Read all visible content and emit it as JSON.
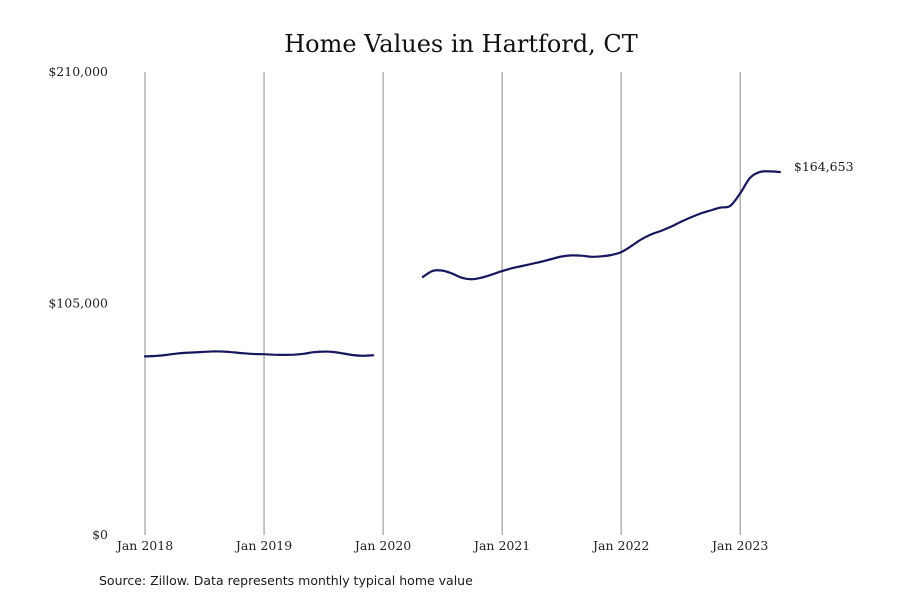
{
  "chart_data": {
    "type": "line",
    "title": "Home Values in Hartford, CT",
    "ylim": [
      0,
      210000
    ],
    "xlim": [
      "2018-01",
      "2023-06"
    ],
    "y_ticks": [
      {
        "value": 0,
        "label": "$0"
      },
      {
        "value": 105000,
        "label": "$105,000"
      },
      {
        "value": 210000,
        "label": "$210,000"
      }
    ],
    "x_ticks": [
      {
        "value": "2018-01",
        "label": "Jan 2018"
      },
      {
        "value": "2019-01",
        "label": "Jan 2019"
      },
      {
        "value": "2020-01",
        "label": "Jan 2020"
      },
      {
        "value": "2021-01",
        "label": "Jan 2021"
      },
      {
        "value": "2022-01",
        "label": "Jan 2022"
      },
      {
        "value": "2023-01",
        "label": "Jan 2023"
      }
    ],
    "grid": {
      "vertical": true,
      "horizontal": false
    },
    "line_color": "#17175e",
    "grid_color": "#8c8c8c",
    "end_label": "$164,653",
    "source": "Source: Zillow. Data represents monthly typical home value",
    "series": [
      {
        "segments": [
          [
            {
              "x": "2018-01",
              "y": 81000
            },
            {
              "x": "2018-02",
              "y": 81200
            },
            {
              "x": "2018-03",
              "y": 81600
            },
            {
              "x": "2018-04",
              "y": 82200
            },
            {
              "x": "2018-05",
              "y": 82600
            },
            {
              "x": "2018-06",
              "y": 82800
            },
            {
              "x": "2018-07",
              "y": 83100
            },
            {
              "x": "2018-08",
              "y": 83300
            },
            {
              "x": "2018-09",
              "y": 83200
            },
            {
              "x": "2018-10",
              "y": 82800
            },
            {
              "x": "2018-11",
              "y": 82400
            },
            {
              "x": "2018-12",
              "y": 82100
            },
            {
              "x": "2019-01",
              "y": 82000
            },
            {
              "x": "2019-02",
              "y": 81800
            },
            {
              "x": "2019-03",
              "y": 81700
            },
            {
              "x": "2019-04",
              "y": 81800
            },
            {
              "x": "2019-05",
              "y": 82200
            },
            {
              "x": "2019-06",
              "y": 82900
            },
            {
              "x": "2019-07",
              "y": 83200
            },
            {
              "x": "2019-08",
              "y": 83000
            },
            {
              "x": "2019-09",
              "y": 82300
            },
            {
              "x": "2019-10",
              "y": 81600
            },
            {
              "x": "2019-11",
              "y": 81300
            },
            {
              "x": "2019-12",
              "y": 81500
            }
          ],
          [
            {
              "x": "2020-05",
              "y": 117000
            },
            {
              "x": "2020-06",
              "y": 119800
            },
            {
              "x": "2020-07",
              "y": 119900
            },
            {
              "x": "2020-08",
              "y": 118500
            },
            {
              "x": "2020-09",
              "y": 116600
            },
            {
              "x": "2020-10",
              "y": 116000
            },
            {
              "x": "2020-11",
              "y": 116800
            },
            {
              "x": "2020-12",
              "y": 118200
            },
            {
              "x": "2021-01",
              "y": 119700
            },
            {
              "x": "2021-02",
              "y": 121000
            },
            {
              "x": "2021-03",
              "y": 122000
            },
            {
              "x": "2021-04",
              "y": 123000
            },
            {
              "x": "2021-05",
              "y": 124000
            },
            {
              "x": "2021-06",
              "y": 125200
            },
            {
              "x": "2021-07",
              "y": 126300
            },
            {
              "x": "2021-08",
              "y": 126800
            },
            {
              "x": "2021-09",
              "y": 126700
            },
            {
              "x": "2021-10",
              "y": 126200
            },
            {
              "x": "2021-11",
              "y": 126400
            },
            {
              "x": "2021-12",
              "y": 127000
            },
            {
              "x": "2022-01",
              "y": 128300
            },
            {
              "x": "2022-02",
              "y": 131000
            },
            {
              "x": "2022-03",
              "y": 134000
            },
            {
              "x": "2022-04",
              "y": 136300
            },
            {
              "x": "2022-05",
              "y": 137900
            },
            {
              "x": "2022-06",
              "y": 139800
            },
            {
              "x": "2022-07",
              "y": 142000
            },
            {
              "x": "2022-08",
              "y": 144000
            },
            {
              "x": "2022-09",
              "y": 145800
            },
            {
              "x": "2022-10",
              "y": 147200
            },
            {
              "x": "2022-11",
              "y": 148500
            },
            {
              "x": "2022-12",
              "y": 149300
            },
            {
              "x": "2023-01",
              "y": 155000
            },
            {
              "x": "2023-02",
              "y": 162000
            },
            {
              "x": "2023-03",
              "y": 164700
            },
            {
              "x": "2023-04",
              "y": 164900
            },
            {
              "x": "2023-05",
              "y": 164653
            }
          ]
        ]
      }
    ]
  }
}
